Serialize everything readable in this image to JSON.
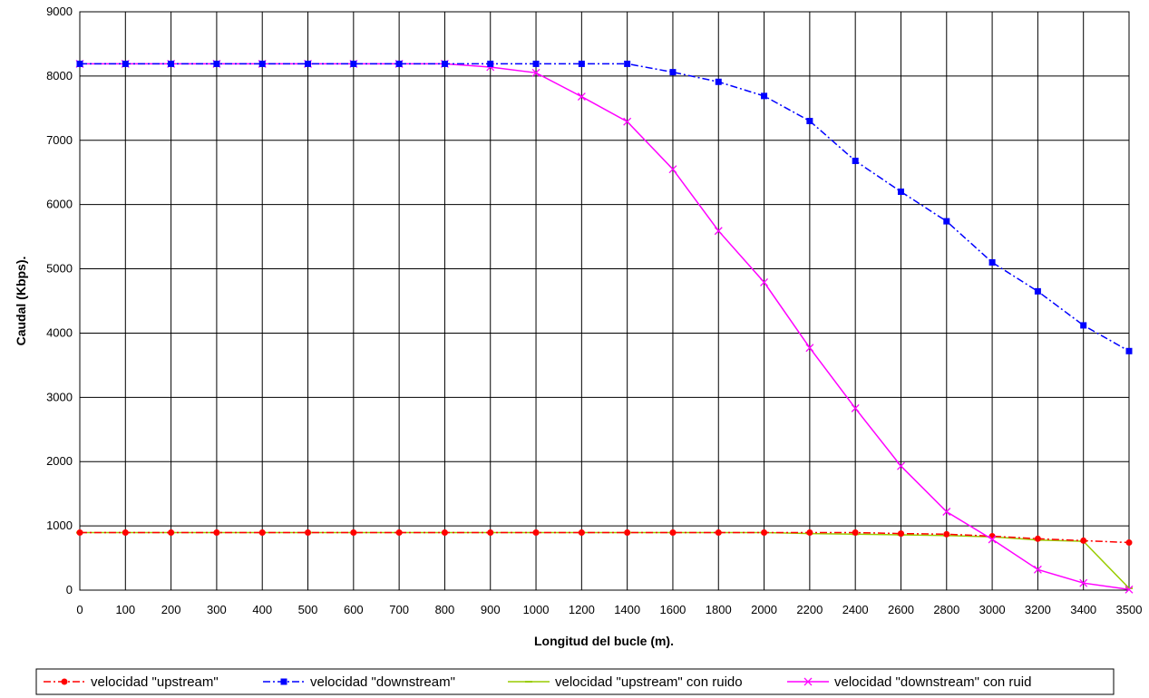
{
  "chart_data": {
    "type": "line",
    "title": "",
    "xlabel": "Longitud del bucle (m).",
    "ylabel": "Caudal (Kbps).",
    "ylim": [
      0,
      9000
    ],
    "yticks": [
      "0",
      "1000",
      "2000",
      "3000",
      "4000",
      "5000",
      "6000",
      "7000",
      "8000",
      "9000"
    ],
    "categories": [
      "0",
      "100",
      "200",
      "300",
      "400",
      "500",
      "600",
      "700",
      "800",
      "900",
      "1000",
      "1200",
      "1400",
      "1600",
      "1800",
      "2000",
      "2200",
      "2400",
      "2600",
      "2800",
      "3000",
      "3200",
      "3400",
      "3500"
    ],
    "grid": true,
    "legend_position": "bottom",
    "series": [
      {
        "name": "velocidad \"upstream\"",
        "color": "#ff0000",
        "line_style": "dash-dot",
        "marker": "circle",
        "values": [
          896,
          896,
          896,
          896,
          896,
          896,
          896,
          896,
          896,
          896,
          896,
          896,
          896,
          896,
          896,
          896,
          896,
          896,
          880,
          870,
          840,
          800,
          770,
          740
        ]
      },
      {
        "name": "velocidad \"downstream\"",
        "color": "#0000ff",
        "line_style": "dash-dot",
        "marker": "square",
        "values": [
          8190,
          8190,
          8190,
          8190,
          8190,
          8190,
          8190,
          8190,
          8190,
          8190,
          8190,
          8190,
          8190,
          8060,
          7910,
          7690,
          7300,
          6680,
          6200,
          5740,
          5100,
          4650,
          4120,
          3720
        ]
      },
      {
        "name": "velocidad \"upstream\" con ruido",
        "color": "#99cc00",
        "line_style": "solid",
        "marker": "dash",
        "values": [
          896,
          896,
          896,
          896,
          896,
          896,
          896,
          896,
          896,
          896,
          896,
          896,
          896,
          896,
          896,
          896,
          880,
          870,
          860,
          850,
          830,
          780,
          760,
          30
        ]
      },
      {
        "name": "velocidad \"downstream\" con ruid",
        "color": "#ff00ff",
        "line_style": "solid",
        "marker": "x",
        "values": [
          8190,
          8190,
          8190,
          8190,
          8190,
          8190,
          8190,
          8190,
          8190,
          8140,
          8050,
          7680,
          7290,
          6550,
          5590,
          4790,
          3770,
          2830,
          1930,
          1220,
          790,
          320,
          110,
          10
        ]
      }
    ]
  }
}
